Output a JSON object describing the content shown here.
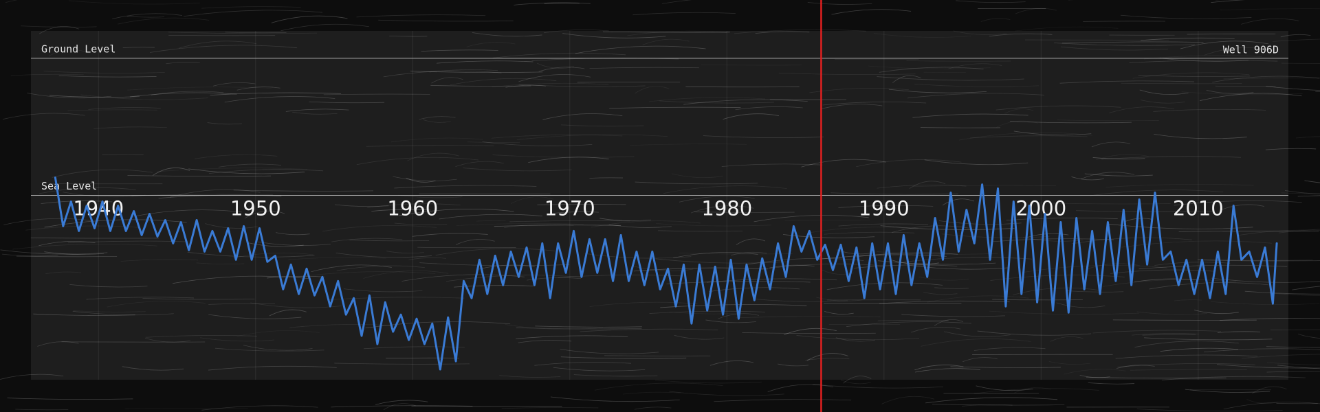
{
  "chart_data": {
    "type": "line",
    "title": "Well 906D",
    "reference_lines": [
      {
        "label": "Ground Level",
        "value": 20
      },
      {
        "label": "Sea Level",
        "value": 0
      }
    ],
    "xlim": [
      1935.7,
      2015.74
    ],
    "xticks": [
      1940,
      1950,
      1960,
      1970,
      1980,
      1990,
      2000,
      2010
    ],
    "ylim": [
      -26.9,
      24.0
    ],
    "cursor_x": 1986.0,
    "cursor_color": "#e02020",
    "series": [
      {
        "color": "#3a7bd5",
        "x": [
          1937.25,
          1937.75,
          1938.25,
          1938.75,
          1939.25,
          1939.75,
          1940.25,
          1940.75,
          1941.25,
          1941.75,
          1942.25,
          1942.75,
          1943.25,
          1943.75,
          1944.25,
          1944.75,
          1945.25,
          1945.75,
          1946.25,
          1946.75,
          1947.25,
          1947.75,
          1948.25,
          1948.75,
          1949.25,
          1949.75,
          1950.25,
          1950.75,
          1951.25,
          1951.75,
          1952.25,
          1952.75,
          1953.25,
          1953.75,
          1954.25,
          1954.75,
          1955.25,
          1955.75,
          1956.25,
          1956.75,
          1957.25,
          1957.75,
          1958.25,
          1958.75,
          1959.25,
          1959.75,
          1960.25,
          1960.75,
          1961.25,
          1961.75,
          1962.25,
          1962.75,
          1963.25,
          1963.75,
          1964.25,
          1964.75,
          1965.25,
          1965.75,
          1966.25,
          1966.75,
          1967.25,
          1967.75,
          1968.25,
          1968.75,
          1969.25,
          1969.75,
          1970.25,
          1970.75,
          1971.25,
          1971.75,
          1972.25,
          1972.75,
          1973.25,
          1973.75,
          1974.25,
          1974.75,
          1975.25,
          1975.75,
          1976.25,
          1976.75,
          1977.25,
          1977.75,
          1978.25,
          1978.75,
          1979.25,
          1979.75,
          1980.25,
          1980.75,
          1981.25,
          1981.75,
          1982.25,
          1982.75,
          1983.25,
          1983.75,
          1984.25,
          1984.75,
          1985.25,
          1985.75,
          1986.25,
          1986.75,
          1987.25,
          1987.75,
          1988.25,
          1988.75,
          1989.25,
          1989.75,
          1990.25,
          1990.75,
          1991.25,
          1991.75,
          1992.25,
          1992.75,
          1993.25,
          1993.75,
          1994.25,
          1994.75,
          1995.25,
          1995.75,
          1996.25,
          1996.75,
          1997.25,
          1997.75,
          1998.25,
          1998.75,
          1999.25,
          1999.75,
          2000.25,
          2000.75,
          2001.25,
          2001.75,
          2002.25,
          2002.75,
          2003.25,
          2003.75,
          2004.25,
          2004.75,
          2005.25,
          2005.75,
          2006.25,
          2006.75,
          2007.25,
          2007.75,
          2008.25,
          2008.75,
          2009.25,
          2009.75,
          2010.25,
          2010.75,
          2011.25,
          2011.75,
          2012.25,
          2012.75,
          2013.25,
          2013.75,
          2014.25,
          2014.75,
          2015.0
        ],
        "values": [
          2.6,
          -4.5,
          -0.9,
          -5.2,
          -1.5,
          -4.8,
          -0.9,
          -5.2,
          -1.5,
          -5.2,
          -2.3,
          -5.8,
          -2.7,
          -6.0,
          -3.6,
          -7.0,
          -3.9,
          -8.0,
          -3.6,
          -8.2,
          -5.2,
          -8.2,
          -4.8,
          -9.4,
          -4.5,
          -9.4,
          -4.8,
          -9.7,
          -8.8,
          -13.7,
          -10.1,
          -14.4,
          -10.7,
          -14.6,
          -11.9,
          -16.2,
          -12.5,
          -17.4,
          -15.0,
          -20.5,
          -14.6,
          -21.7,
          -15.6,
          -19.9,
          -17.4,
          -21.1,
          -18.0,
          -21.7,
          -18.7,
          -25.4,
          -17.8,
          -24.2,
          -12.5,
          -15.0,
          -9.4,
          -14.4,
          -8.8,
          -13.1,
          -8.2,
          -11.9,
          -7.6,
          -13.1,
          -7.0,
          -15.0,
          -7.0,
          -11.3,
          -5.2,
          -11.9,
          -6.4,
          -11.3,
          -6.4,
          -12.5,
          -5.8,
          -12.5,
          -8.2,
          -13.1,
          -8.2,
          -13.7,
          -10.7,
          -16.2,
          -10.1,
          -18.7,
          -10.1,
          -16.8,
          -10.4,
          -17.4,
          -9.4,
          -18.0,
          -10.1,
          -15.3,
          -9.2,
          -13.7,
          -7.0,
          -11.9,
          -4.5,
          -8.2,
          -5.2,
          -9.4,
          -7.2,
          -10.9,
          -7.2,
          -12.5,
          -7.6,
          -15.0,
          -7.0,
          -13.7,
          -7.0,
          -14.4,
          -5.8,
          -13.1,
          -7.0,
          -11.9,
          -3.3,
          -9.4,
          0.4,
          -8.2,
          -2.1,
          -7.0,
          1.6,
          -9.4,
          1.0,
          -16.2,
          -0.9,
          -14.4,
          -1.5,
          -15.6,
          -2.7,
          -16.8,
          -3.9,
          -17.1,
          -3.3,
          -13.7,
          -5.2,
          -14.4,
          -3.9,
          -12.5,
          -2.1,
          -13.1,
          -0.6,
          -10.1,
          0.4,
          -9.4,
          -8.2,
          -13.1,
          -9.4,
          -14.4,
          -9.4,
          -15.0,
          -8.2,
          -14.4,
          -1.5,
          -9.4,
          -8.2,
          -11.9,
          -7.6,
          -15.8,
          -7.0
        ]
      }
    ]
  }
}
